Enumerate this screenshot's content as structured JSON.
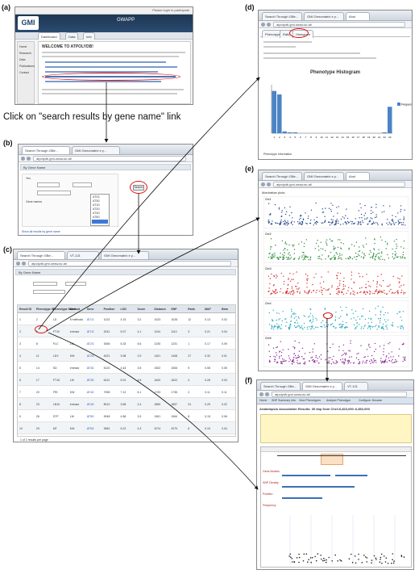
{
  "labels": {
    "a": "(a)",
    "b": "(b)",
    "c": "(c)",
    "d": "(d)",
    "e": "(e)",
    "f": "(f)"
  },
  "instruction": "Click on \"search results by gene name\" link",
  "panel_a": {
    "title": "GWAPP",
    "topright": "Please login to participate",
    "logo": "GMI",
    "welcome": "WELCOME TO ATPOLYDB!",
    "tabs": [
      "Dashboard",
      "Data",
      "Info"
    ],
    "left_items": [
      "Home",
      "Research",
      "Data",
      "Publications",
      "Contact"
    ]
  },
  "panel_b": {
    "browser_tabs": [
      "Search Through GBe...",
      "GMI Genomatrix e y..."
    ],
    "url": "atpolydb.gmi.oeaw.ac.at/",
    "header": "By Gene Name",
    "options": [
      "Yes",
      "Gene names",
      "ATG1",
      "AT3G",
      "AT1G",
      "AT2G",
      "AT4G",
      "AT5G"
    ],
    "submit": "Search",
    "footer": "Show all results by gene name"
  },
  "panel_c": {
    "browser_tabs": [
      "Search Through GBe...",
      "VT-121",
      "GMI Genomatrix e y..."
    ],
    "url": "atpolydb.gmi.oeaw.ac.at/",
    "header": "By Gene Name",
    "columns": [
      "Result ID",
      "Phenotype ID",
      "Phenotype Name",
      "Method",
      "Gene",
      "Position",
      "LOD",
      "Score",
      "Distance",
      "SNP",
      "Rank",
      "MAF",
      "Beta"
    ],
    "rows": [
      [
        "1",
        "2",
        "LD",
        "5 methods",
        "AT1G",
        "1022",
        "4.15",
        "3.2",
        "1023",
        "1028",
        "12",
        "0.13",
        "0.02"
      ],
      [
        "2",
        "5",
        "FT10",
        "emmax",
        "AT1G",
        "2041",
        "5.07",
        "4.1",
        "1104",
        "1110",
        "3",
        "0.21",
        "0.04"
      ],
      [
        "3",
        "8",
        "FLC",
        "LM",
        "AT2G",
        "3065",
        "6.33",
        "5.6",
        "1230",
        "1231",
        "1",
        "0.17",
        "0.09"
      ],
      [
        "4",
        "11",
        "LDV",
        "KW",
        "AT2G",
        "4021",
        "3.98",
        "2.9",
        "1401",
        "1408",
        "27",
        "0.32",
        "0.01"
      ],
      [
        "5",
        "14",
        "SD",
        "emmax",
        "AT3G",
        "5120",
        "4.44",
        "3.5",
        "1502",
        "1506",
        "9",
        "0.08",
        "0.05"
      ],
      [
        "6",
        "17",
        "FT16",
        "LM",
        "AT3G",
        "6112",
        "5.91",
        "4.8",
        "1620",
        "1622",
        "4",
        "0.26",
        "0.03"
      ],
      [
        "7",
        "20",
        "FRI",
        "KW",
        "AT4G",
        "7055",
        "7.12",
        "6.1",
        "1733",
        "1735",
        "2",
        "0.11",
        "0.11"
      ],
      [
        "8",
        "23",
        "LN10",
        "emmax",
        "AT4G",
        "8010",
        "3.65",
        "2.4",
        "1850",
        "1857",
        "31",
        "0.29",
        "0.02"
      ],
      [
        "9",
        "26",
        "DTF",
        "LM",
        "AT5G",
        "9048",
        "4.86",
        "3.9",
        "1961",
        "1964",
        "8",
        "0.15",
        "0.06"
      ],
      [
        "10",
        "29",
        "MT",
        "KW",
        "AT5G",
        "9981",
        "5.22",
        "4.3",
        "2074",
        "2079",
        "6",
        "0.19",
        "0.04"
      ]
    ],
    "footer": "1 of 2 results per page"
  },
  "panel_d": {
    "browser_tabs": [
      "Search Through GBe...",
      "GMI Genomatrix e y...",
      "Ahol"
    ],
    "url": "atpolydb.gmi.oeaw.ac.at/",
    "tabs": [
      "Phenotype",
      "Ratio",
      "Histogram"
    ],
    "chart_title": "Phenotype Histogram",
    "legend": "Frequency",
    "note": "Phenotype Information"
  },
  "panel_e": {
    "browser_tabs": [
      "Search Through GBe...",
      "GMI Genomatrix e y...",
      "Ahol"
    ],
    "url": "atpolydb.gmi.oeaw.ac.at/",
    "header": "Manhattan plots",
    "chromosomes": [
      "Chr1",
      "Chr2",
      "Chr3",
      "Chr4",
      "Chr5"
    ]
  },
  "panel_f": {
    "browser_tabs": [
      "Search Through GBe...",
      "GMI Genomatrix e y...",
      "VT-121"
    ],
    "url": "atpolydb.gmi.oeaw.ac.at/",
    "menu": [
      "Home",
      "SNP Summary Info",
      "View Phenotypes",
      "Analyze Phenotype",
      "Configure Jbrowse"
    ],
    "title": "Arabidopsis Association Results: 30 kbp from Chr4:6,823,000..6,852,000",
    "tracks": [
      "Gene Models",
      "SNP Density",
      "Position",
      "Frequency"
    ]
  },
  "colors": {
    "highlight": "#dd1111",
    "chr1": "#2a4b8d",
    "chr2": "#2e8b3a",
    "chr3": "#d63131",
    "chr4": "#25a9bd",
    "chr5": "#8c2a94",
    "histogram": "#4a84c7"
  },
  "chart_data": [
    {
      "type": "bar",
      "title": "Phenotype Histogram",
      "categories": [
        "1",
        "2",
        "3",
        "4",
        "5",
        "6",
        "7",
        "8",
        "9",
        "10",
        "11",
        "12",
        "13",
        "14",
        "15",
        "16",
        "17",
        "18",
        "19",
        "20",
        "21",
        "22",
        "23"
      ],
      "series": [
        {
          "name": "Frequency",
          "values": [
            48,
            44,
            2,
            1,
            1,
            0,
            0,
            0,
            0,
            0,
            0,
            0,
            0,
            0,
            0,
            0,
            0,
            0,
            0,
            0,
            0,
            1,
            30
          ]
        }
      ],
      "ylim": [
        0,
        55
      ]
    }
  ]
}
